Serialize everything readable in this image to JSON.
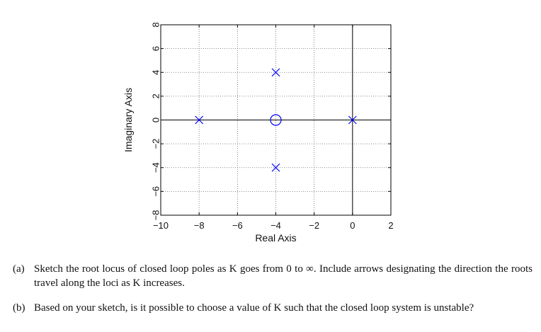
{
  "chart_data": {
    "type": "scatter",
    "title": "",
    "xlabel": "Real Axis",
    "ylabel": "Imaginary Axis",
    "xlim": [
      -10,
      2
    ],
    "ylim": [
      -8,
      8
    ],
    "xticks": [
      -10,
      -8,
      -6,
      -4,
      -2,
      0,
      2
    ],
    "yticks": [
      -8,
      -6,
      -4,
      -2,
      0,
      2,
      4,
      6,
      8
    ],
    "grid": true,
    "reference_lines": {
      "x": 0,
      "y": 0
    },
    "marker_color": "#0000ff",
    "series": [
      {
        "marker": "x",
        "points": [
          [
            -8,
            0
          ],
          [
            0,
            0
          ],
          [
            -4,
            4
          ],
          [
            -4,
            -4
          ]
        ]
      },
      {
        "marker": "o",
        "points": [
          [
            -4,
            0
          ]
        ]
      }
    ]
  },
  "questions": [
    {
      "label": "(a)",
      "text": "Sketch the root locus of closed loop poles as K goes from 0 to ∞. Include arrows designating the direction the roots travel along the loci as K increases."
    },
    {
      "label": "(b)",
      "text": "Based on your sketch, is it possible to choose a value of K such that the closed loop system is unstable?"
    }
  ]
}
